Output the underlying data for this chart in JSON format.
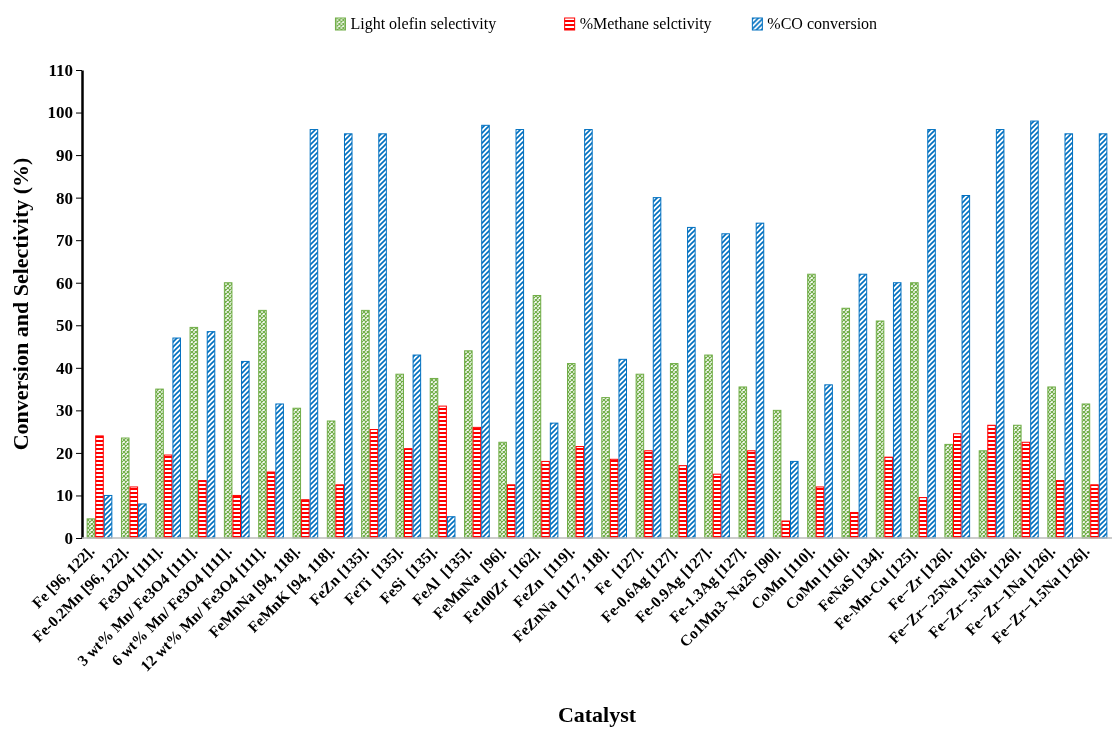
{
  "chart_data": {
    "type": "bar",
    "xlabel": "Catalyst",
    "ylabel": "Conversion and Selectivity (%)",
    "categories": [
      "Fe [96, 122].",
      "Fe-0.2Mn [96, 122].",
      "Fe3O4 [111].",
      "3 wt% Mn/ Fe3O4 [111].",
      "6 wt% Mn/ Fe3O4 [111].",
      "12 wt% Mn/ Fe3O4 [111].",
      "FeMnNa [94, 118].",
      "FeMnK [94, 118].",
      "FeZn [135].",
      "FeTi  [135].",
      "FeSi  [135].",
      "FeAl  [135].",
      "FeMnNa  [96].",
      "Fe100Zr  [162].",
      "FeZn  [119].",
      "FeZnNa  [117, 118].",
      "Fe  [127].",
      "Fe-0.6Ag [127].",
      "Fe-0.9Ag [127].",
      "Fe-1.3Ag [127].",
      "Co1Mn3- Na2S [90].",
      "CoMn [110].",
      "CoMn [116].",
      "FeNaS [134].",
      "Fe-Mn-Cu [125].",
      "Fe−Zr [126].",
      "Fe−Zr−.25Na [126].",
      "Fe−Zr−.5Na [126].",
      "Fe−Zr−1Na [126].",
      "Fe−Zr−1.5Na [126]."
    ],
    "series": [
      {
        "name": "Light olefin selectivity",
        "color": "#70ad47",
        "values": [
          4.5,
          23.5,
          35,
          49.5,
          60,
          53.5,
          30.5,
          27.5,
          53.5,
          38.5,
          37.5,
          44,
          22.5,
          57,
          41,
          33,
          38.5,
          41,
          43,
          35.5,
          30,
          62,
          54,
          51,
          60,
          22,
          20.5,
          26.5,
          35.5,
          31.5
        ]
      },
      {
        "name": "%Methane selctivity",
        "color": "#ff0000",
        "values": [
          24,
          12,
          19.5,
          13.5,
          10,
          15.5,
          9,
          12.5,
          25.5,
          21,
          31,
          26,
          12.5,
          18,
          21.5,
          18.5,
          20.5,
          17,
          15,
          20.5,
          4,
          12,
          6,
          19,
          9.5,
          24.5,
          26.5,
          22.5,
          13.5,
          12.5
        ]
      },
      {
        "name": "%CO conversion",
        "color": "#0070c0",
        "values": [
          10,
          8,
          47,
          48.5,
          41.5,
          31.5,
          96,
          95,
          95,
          43,
          5,
          97,
          96,
          27,
          96,
          42,
          80,
          73,
          71.5,
          74,
          18,
          36,
          62,
          60,
          96,
          80.5,
          96,
          98,
          95,
          95
        ]
      }
    ],
    "ylim": [
      0,
      110
    ],
    "yticks": [
      0,
      10,
      20,
      30,
      40,
      50,
      60,
      70,
      80,
      90,
      100,
      110
    ],
    "grid": false,
    "legend": "top"
  }
}
